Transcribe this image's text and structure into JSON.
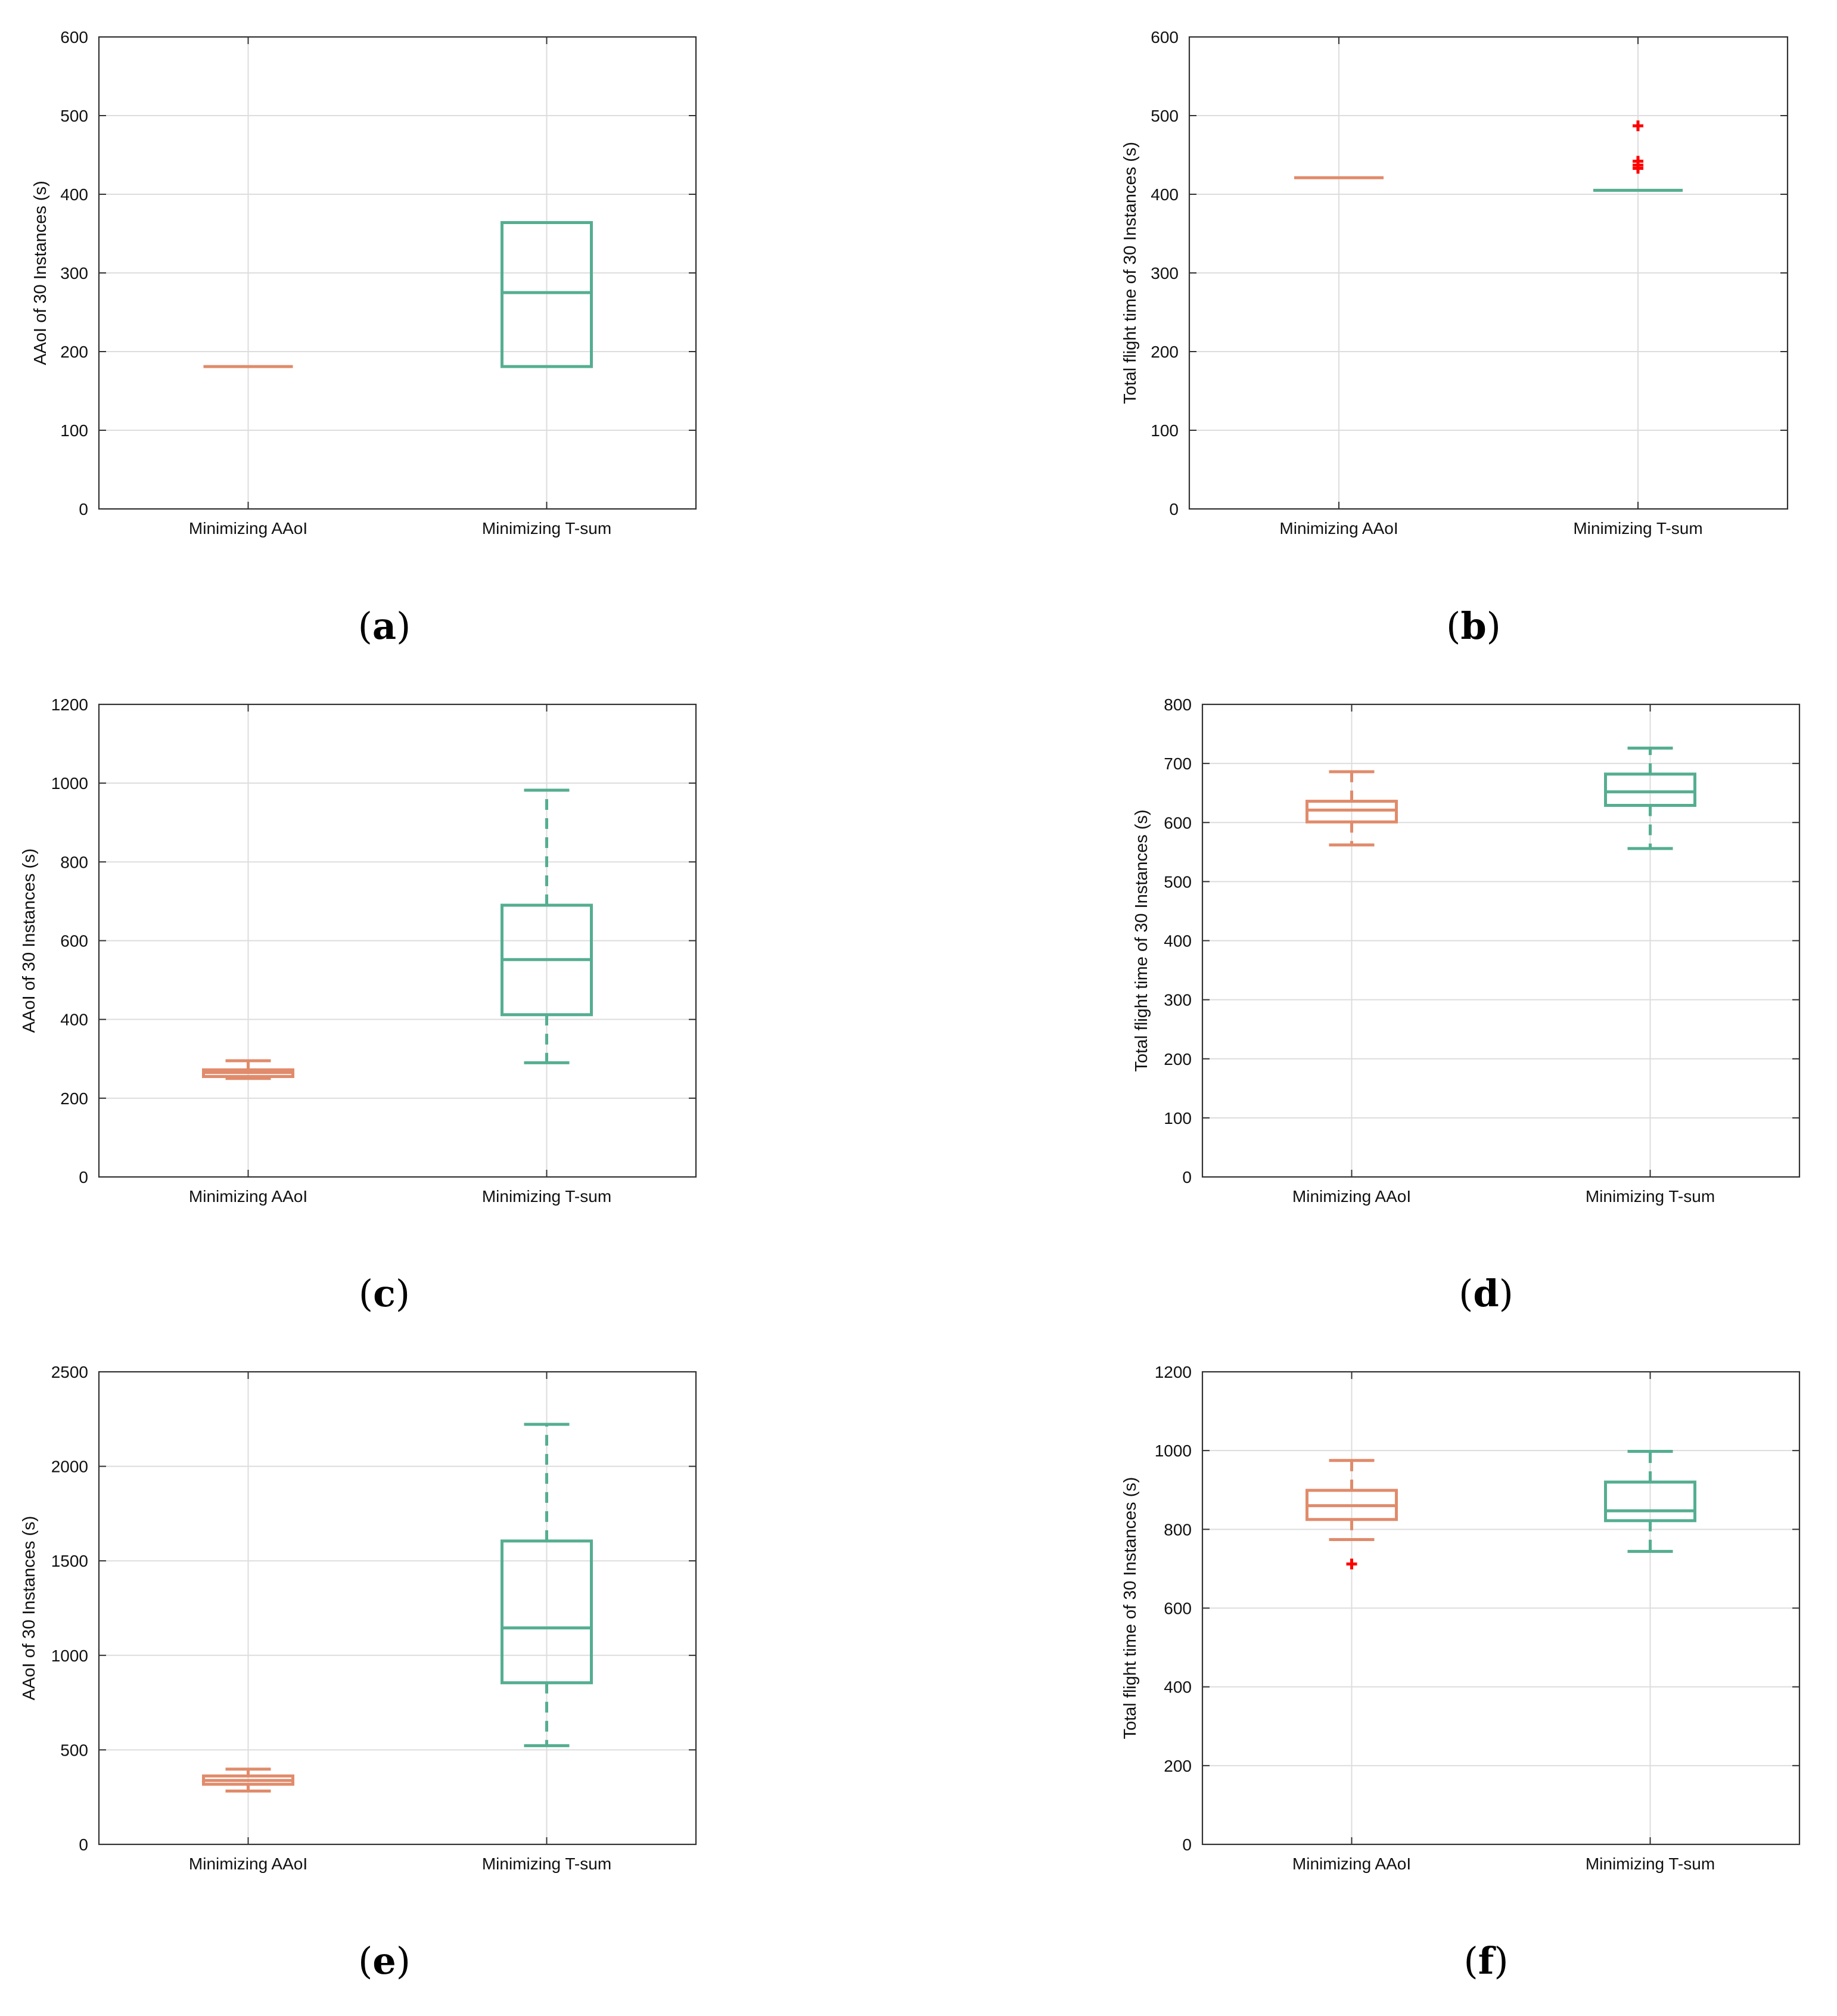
{
  "colors": {
    "minimizing_aaoi": "#e08b6b",
    "minimizing_tsum": "#55ae91",
    "outlier": "#ff0000",
    "grid": "#dddddd",
    "axes": "#333333"
  },
  "chart_data": [
    {
      "type": "boxplot",
      "panel_label": "(a)",
      "panel_letter": "a",
      "ylabel": "AAoI of 30 Instances (s)",
      "ylim": [
        0,
        600
      ],
      "yticks": [
        0,
        100,
        200,
        300,
        400,
        500,
        600
      ],
      "ytick_labels": [
        "0",
        "100",
        "200",
        "300",
        "400",
        "500",
        "600"
      ],
      "categories": [
        "Minimizing AAoI",
        "Minimizing T-sum"
      ],
      "boxes": [
        {
          "name": "Minimizing AAoI",
          "color_key": "minimizing_aaoi",
          "whisker_low": 181,
          "q1": 181,
          "median": 181,
          "q3": 181,
          "whisker_high": 181,
          "outliers": []
        },
        {
          "name": "Minimizing T-sum",
          "color_key": "minimizing_tsum",
          "whisker_low": 181,
          "q1": 181,
          "median": 275,
          "q3": 364,
          "whisker_high": 364,
          "outliers": []
        }
      ]
    },
    {
      "type": "boxplot",
      "panel_label": "(b)",
      "panel_letter": "b",
      "ylabel": "Total flight time of 30 Instances (s)",
      "ylim": [
        0,
        600
      ],
      "yticks": [
        0,
        100,
        200,
        300,
        400,
        500,
        600
      ],
      "ytick_labels": [
        "0",
        "100",
        "200",
        "300",
        "400",
        "500",
        "600"
      ],
      "categories": [
        "Minimizing AAoI",
        "Minimizing T-sum"
      ],
      "boxes": [
        {
          "name": "Minimizing AAoI",
          "color_key": "minimizing_aaoi",
          "whisker_low": 421,
          "q1": 421,
          "median": 421,
          "q3": 421,
          "whisker_high": 421,
          "outliers": []
        },
        {
          "name": "Minimizing T-sum",
          "color_key": "minimizing_tsum",
          "whisker_low": 405,
          "q1": 405,
          "median": 405,
          "q3": 405,
          "whisker_high": 405,
          "outliers": [
            487,
            442,
            437,
            433
          ]
        }
      ]
    },
    {
      "type": "boxplot",
      "panel_label": "(c)",
      "panel_letter": "c",
      "ylabel": "AAoI of 30 Instances (s)",
      "ylim": [
        0,
        1200
      ],
      "yticks": [
        0,
        200,
        400,
        600,
        800,
        1000,
        1200
      ],
      "ytick_labels": [
        "0",
        "200",
        "400",
        "600",
        "800",
        "1000",
        "1200"
      ],
      "categories": [
        "Minimizing AAoI",
        "Minimizing T-sum"
      ],
      "boxes": [
        {
          "name": "Minimizing AAoI",
          "color_key": "minimizing_aaoi",
          "whisker_low": 250,
          "q1": 255,
          "median": 265,
          "q3": 272,
          "whisker_high": 295,
          "outliers": []
        },
        {
          "name": "Minimizing T-sum",
          "color_key": "minimizing_tsum",
          "whisker_low": 290,
          "q1": 412,
          "median": 552,
          "q3": 690,
          "whisker_high": 982,
          "outliers": []
        }
      ]
    },
    {
      "type": "boxplot",
      "panel_label": "(d)",
      "panel_letter": "d",
      "ylabel": "Total flight time of 30 Instances (s)",
      "ylim": [
        0,
        800
      ],
      "yticks": [
        0,
        100,
        200,
        300,
        400,
        500,
        600,
        700,
        800
      ],
      "ytick_labels": [
        "0",
        "100",
        "200",
        "300",
        "400",
        "500",
        "600",
        "700",
        "800"
      ],
      "categories": [
        "Minimizing AAoI",
        "Minimizing T-sum"
      ],
      "boxes": [
        {
          "name": "Minimizing AAoI",
          "color_key": "minimizing_aaoi",
          "whisker_low": 562,
          "q1": 601,
          "median": 621,
          "q3": 636,
          "whisker_high": 686,
          "outliers": []
        },
        {
          "name": "Minimizing T-sum",
          "color_key": "minimizing_tsum",
          "whisker_low": 556,
          "q1": 629,
          "median": 652,
          "q3": 682,
          "whisker_high": 726,
          "outliers": []
        }
      ]
    },
    {
      "type": "boxplot",
      "panel_label": "(e)",
      "panel_letter": "e",
      "ylabel": "AAoI of 30 Instances (s)",
      "ylim": [
        0,
        2500
      ],
      "yticks": [
        0,
        500,
        1000,
        1500,
        2000,
        2500
      ],
      "ytick_labels": [
        "0",
        "500",
        "1000",
        "1500",
        "2000",
        "2500"
      ],
      "categories": [
        "Minimizing AAoI",
        "Minimizing T-sum"
      ],
      "boxes": [
        {
          "name": "Minimizing AAoI",
          "color_key": "minimizing_aaoi",
          "whisker_low": 282,
          "q1": 318,
          "median": 338,
          "q3": 362,
          "whisker_high": 398,
          "outliers": []
        },
        {
          "name": "Minimizing T-sum",
          "color_key": "minimizing_tsum",
          "whisker_low": 522,
          "q1": 855,
          "median": 1145,
          "q3": 1605,
          "whisker_high": 2222,
          "outliers": []
        }
      ]
    },
    {
      "type": "boxplot",
      "panel_label": "(f)",
      "panel_letter": "f",
      "ylabel": "Total flight time of 30 Instances (s)",
      "ylim": [
        0,
        1200
      ],
      "yticks": [
        0,
        200,
        400,
        600,
        800,
        1000,
        1200
      ],
      "ytick_labels": [
        "0",
        "200",
        "400",
        "600",
        "800",
        "1000",
        "1200"
      ],
      "categories": [
        "Minimizing AAoI",
        "Minimizing T-sum"
      ],
      "boxes": [
        {
          "name": "Minimizing AAoI",
          "color_key": "minimizing_aaoi",
          "whisker_low": 774,
          "q1": 825,
          "median": 860,
          "q3": 899,
          "whisker_high": 975,
          "outliers": [
            712
          ]
        },
        {
          "name": "Minimizing T-sum",
          "color_key": "minimizing_tsum",
          "whisker_low": 744,
          "q1": 822,
          "median": 847,
          "q3": 920,
          "whisker_high": 998,
          "outliers": []
        }
      ]
    }
  ]
}
